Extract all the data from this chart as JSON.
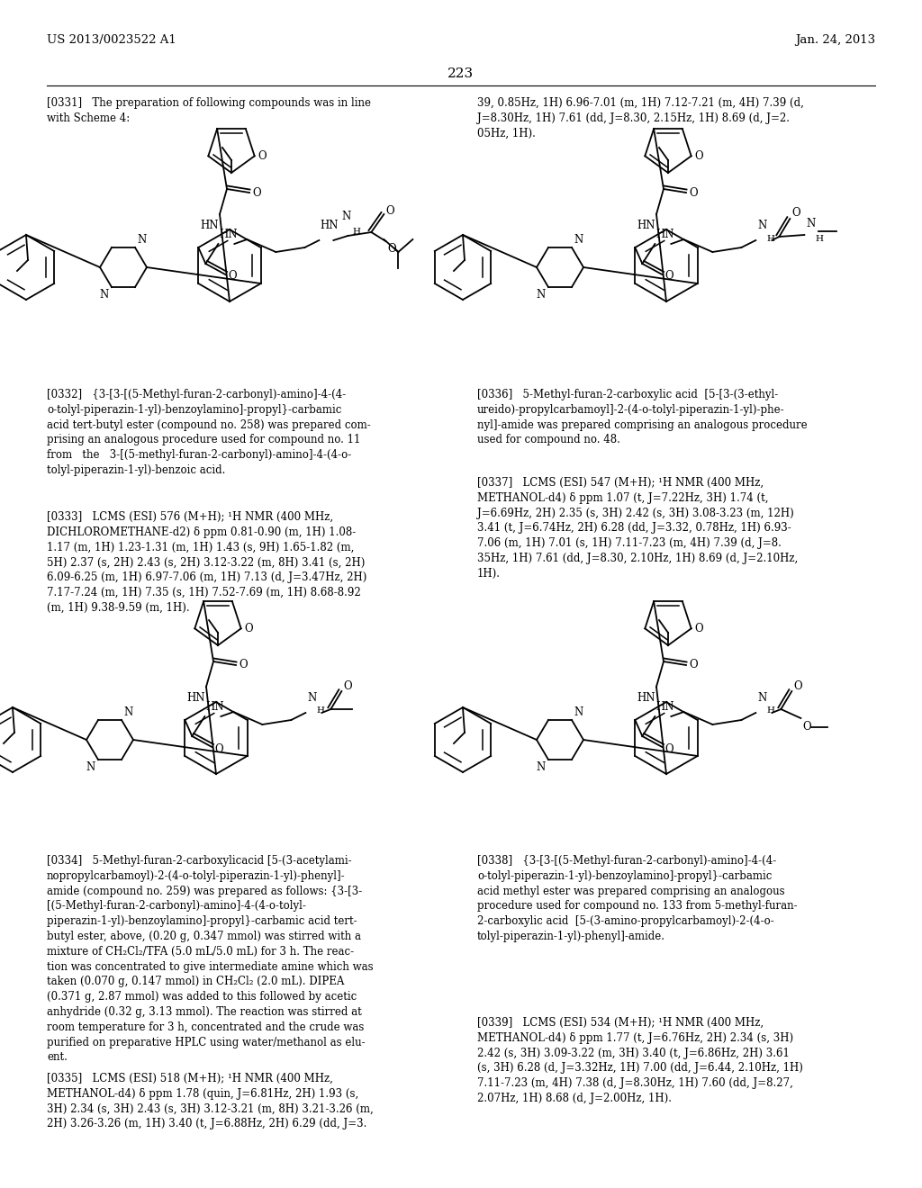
{
  "patent_number": "US 2013/0023522 A1",
  "patent_date": "Jan. 24, 2013",
  "page_number": "223",
  "bg_color": "#ffffff",
  "text_color": "#000000",
  "p0331_left": "[0331]   The preparation of following compounds was in line\nwith Scheme 4:",
  "p0331_right": "39, 0.85Hz, 1H) 6.96-7.01 (m, 1H) 7.12-7.21 (m, 4H) 7.39 (d,\nJ=8.30Hz, 1H) 7.61 (dd, J=8.30, 2.15Hz, 1H) 8.69 (d, J=2.\n05Hz, 1H).",
  "p0332": "[0332]   {3-[3-[(5-Methyl-furan-2-carbonyl)-amino]-4-(4-\no-tolyl-piperazin-1-yl)-benzoylamino]-propyl}-carbamic\nacid tert-butyl ester (compound no. 258) was prepared com-\nprising an analogous procedure used for compound no. 11\nfrom   the   3-[(5-methyl-furan-2-carbonyl)-amino]-4-(4-o-\ntolyl-piperazin-1-yl)-benzoic acid.",
  "p0333": "[0333]   LCMS (ESI) 576 (M+H); ¹H NMR (400 MHz,\nDICHLOROMETHANE-d2) δ ppm 0.81-0.90 (m, 1H) 1.08-\n1.17 (m, 1H) 1.23-1.31 (m, 1H) 1.43 (s, 9H) 1.65-1.82 (m,\n5H) 2.37 (s, 2H) 2.43 (s, 2H) 3.12-3.22 (m, 8H) 3.41 (s, 2H)\n6.09-6.25 (m, 1H) 6.97-7.06 (m, 1H) 7.13 (d, J=3.47Hz, 2H)\n7.17-7.24 (m, 1H) 7.35 (s, 1H) 7.52-7.69 (m, 1H) 8.68-8.92\n(m, 1H) 9.38-9.59 (m, 1H).",
  "p0334": "[0334]   5-Methyl-furan-2-carboxylicacid [5-(3-acetylami-\nnopropylcarbamoyl)-2-(4-o-tolyl-piperazin-1-yl)-phenyl]-\namide (compound no. 259) was prepared as follows: {3-[3-\n[(5-Methyl-furan-2-carbonyl)-amino]-4-(4-o-tolyl-\npiperazin-1-yl)-benzoylamino]-propyl}-carbamic acid tert-\nbutyl ester, above, (0.20 g, 0.347 mmol) was stirred with a\nmixture of CH₂Cl₂/TFA (5.0 mL/5.0 mL) for 3 h. The reac-\ntion was concentrated to give intermediate amine which was\ntaken (0.070 g, 0.147 mmol) in CH₂Cl₂ (2.0 mL). DIPEA\n(0.371 g, 2.87 mmol) was added to this followed by acetic\nanhydride (0.32 g, 3.13 mmol). The reaction was stirred at\nroom temperature for 3 h, concentrated and the crude was\npurified on preparative HPLC using water/methanol as elu-\nent.",
  "p0335": "[0335]   LCMS (ESI) 518 (M+H); ¹H NMR (400 MHz,\nMETHANOL-d4) δ ppm 1.78 (quin, J=6.81Hz, 2H) 1.93 (s,\n3H) 2.34 (s, 3H) 2.43 (s, 3H) 3.12-3.21 (m, 8H) 3.21-3.26 (m,\n2H) 3.26-3.26 (m, 1H) 3.40 (t, J=6.88Hz, 2H) 6.29 (dd, J=3.",
  "p0336": "[0336]   5-Methyl-furan-2-carboxylic acid  [5-[3-(3-ethyl-\nureido)-propylcarbamoyl]-2-(4-o-tolyl-piperazin-1-yl)-phe-\nnyl]-amide was prepared comprising an analogous procedure\nused for compound no. 48.",
  "p0337": "[0337]   LCMS (ESI) 547 (M+H); ¹H NMR (400 MHz,\nMETHANOL-d4) δ ppm 1.07 (t, J=7.22Hz, 3H) 1.74 (t,\nJ=6.69Hz, 2H) 2.35 (s, 3H) 2.42 (s, 3H) 3.08-3.23 (m, 12H)\n3.41 (t, J=6.74Hz, 2H) 6.28 (dd, J=3.32, 0.78Hz, 1H) 6.93-\n7.06 (m, 1H) 7.01 (s, 1H) 7.11-7.23 (m, 4H) 7.39 (d, J=8.\n35Hz, 1H) 7.61 (dd, J=8.30, 2.10Hz, 1H) 8.69 (d, J=2.10Hz,\n1H).",
  "p0338": "[0338]   {3-[3-[(5-Methyl-furan-2-carbonyl)-amino]-4-(4-\no-tolyl-piperazin-1-yl)-benzoylamino]-propyl}-carbamic\nacid methyl ester was prepared comprising an analogous\nprocedure used for compound no. 133 from 5-methyl-furan-\n2-carboxylic acid  [5-(3-amino-propylcarbamoyl)-2-(4-o-\ntolyl-piperazin-1-yl)-phenyl]-amide.",
  "p0339": "[0339]   LCMS (ESI) 534 (M+H); ¹H NMR (400 MHz,\nMETHANOL-d4) δ ppm 1.77 (t, J=6.76Hz, 2H) 2.34 (s, 3H)\n2.42 (s, 3H) 3.09-3.22 (m, 3H) 3.40 (t, J=6.86Hz, 2H) 3.61\n(s, 3H) 6.28 (d, J=3.32Hz, 1H) 7.00 (dd, J=6.44, 2.10Hz, 1H)\n7.11-7.23 (m, 4H) 7.38 (d, J=8.30Hz, 1H) 7.60 (dd, J=8.27,\n2.07Hz, 1H) 8.68 (d, J=2.00Hz, 1H).",
  "lw": 1.3,
  "font_body": 8.5,
  "font_header": 9.5
}
